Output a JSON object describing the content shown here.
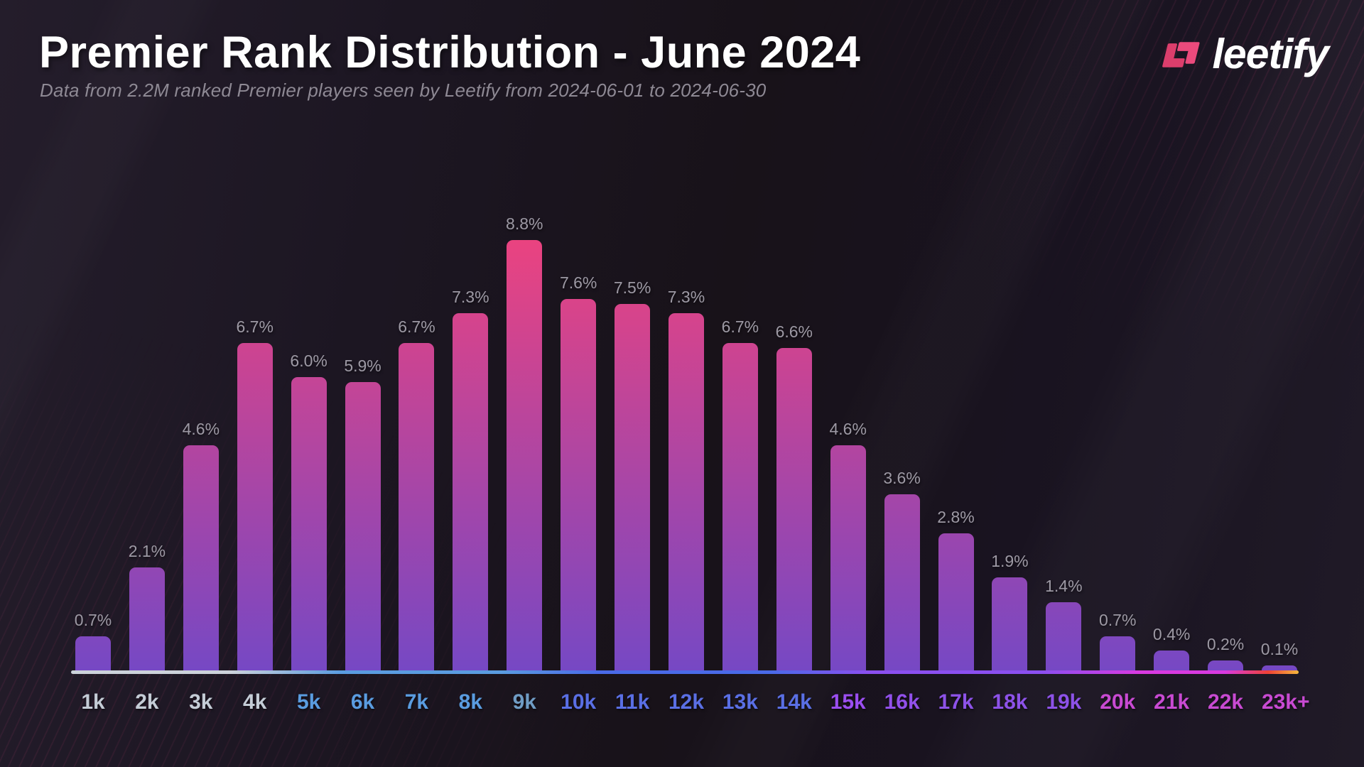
{
  "header": {
    "title": "Premier Rank Distribution - June 2024",
    "subtitle": "Data from 2.2M ranked Premier players seen by Leetify from 2024-06-01 to 2024-06-30"
  },
  "logo": {
    "brand": "leetify",
    "icon_color_left": "#db3e6c",
    "icon_color_right": "#ea4a7c"
  },
  "chart_data": {
    "type": "bar",
    "title": "Premier Rank Distribution - June 2024",
    "categories": [
      "1k",
      "2k",
      "3k",
      "4k",
      "5k",
      "6k",
      "7k",
      "8k",
      "9k",
      "10k",
      "11k",
      "12k",
      "13k",
      "14k",
      "15k",
      "16k",
      "17k",
      "18k",
      "19k",
      "20k",
      "21k",
      "22k",
      "23k+"
    ],
    "values": [
      0.7,
      2.1,
      4.6,
      6.7,
      6.0,
      5.9,
      6.7,
      7.3,
      8.8,
      7.6,
      7.5,
      7.3,
      6.7,
      6.6,
      4.6,
      3.6,
      2.8,
      1.9,
      1.4,
      0.7,
      0.4,
      0.2,
      0.1
    ],
    "value_labels": [
      "0.7%",
      "2.1%",
      "4.6%",
      "6.7%",
      "6.0%",
      "5.9%",
      "6.7%",
      "7.3%",
      "8.8%",
      "7.6%",
      "7.5%",
      "7.3%",
      "6.7%",
      "6.6%",
      "4.6%",
      "3.6%",
      "2.8%",
      "1.9%",
      "1.4%",
      "0.7%",
      "0.4%",
      "0.2%",
      "0.1%"
    ],
    "ylim": [
      0,
      8.8
    ],
    "grid": false,
    "legend": false,
    "xlabel": "",
    "ylabel": "",
    "bar_gradient_top": "#ea4380",
    "bar_gradient_bottom": "#7648c4",
    "value_label_color": "#9d99a4",
    "category_colors": [
      "#c4ccd6",
      "#c4ccd6",
      "#c4ccd6",
      "#c4ccd6",
      "#5a9ce0",
      "#5a9ce0",
      "#5a9ce0",
      "#5a9ce0",
      "#6f9cc4",
      "#5a6fe4",
      "#5a6fe4",
      "#5a6fe4",
      "#5a6fe4",
      "#5a6fe4",
      "#9b4ef0",
      "#9150ea",
      "#8d52e8",
      "#8d52e8",
      "#8d52e8",
      "#c84ad2",
      "#c84ad2",
      "#c84ad2",
      "#c84ad2"
    ],
    "axis_gradient": [
      {
        "color": "#ccd2da",
        "stop": 0
      },
      {
        "color": "#ccd2da",
        "stop": 13
      },
      {
        "color": "#5a9ce0",
        "stop": 22
      },
      {
        "color": "#5a9ce0",
        "stop": 35
      },
      {
        "color": "#4a6ae8",
        "stop": 43
      },
      {
        "color": "#4a6ae8",
        "stop": 57
      },
      {
        "color": "#8b4ff0",
        "stop": 65
      },
      {
        "color": "#8b4ff0",
        "stop": 79
      },
      {
        "color": "#d83ae0",
        "stop": 87
      },
      {
        "color": "#d83ae0",
        "stop": 94
      },
      {
        "color": "#ef4136",
        "stop": 97.5
      },
      {
        "color": "#f5b73d",
        "stop": 100
      }
    ]
  }
}
